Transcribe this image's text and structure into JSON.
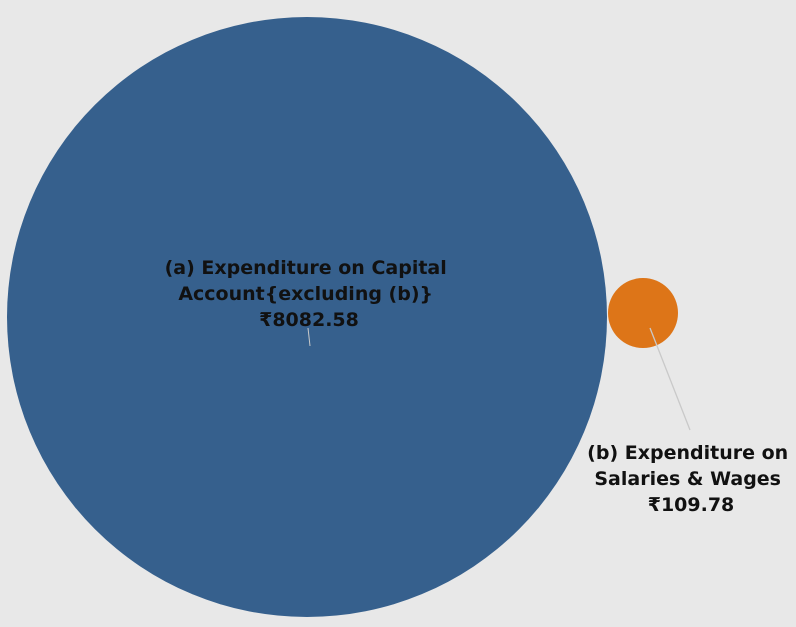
{
  "chart_data": {
    "type": "bubble",
    "currency_symbol": "₹",
    "series": [
      {
        "label_lines": [
          "(a) Expenditure on Capital",
          "Account{excluding (b)}"
        ],
        "value": 8082.58,
        "value_text": "₹8082.58",
        "color": "#36608d"
      },
      {
        "label_lines": [
          "(b) Expenditure on",
          "Salaries & Wages"
        ],
        "value": 109.78,
        "value_text": "₹109.78",
        "color": "#dd7518"
      }
    ]
  },
  "colors": {
    "background": "#e8e8e8",
    "leader_line": "#c9c9c9",
    "label_text": "#111111"
  }
}
